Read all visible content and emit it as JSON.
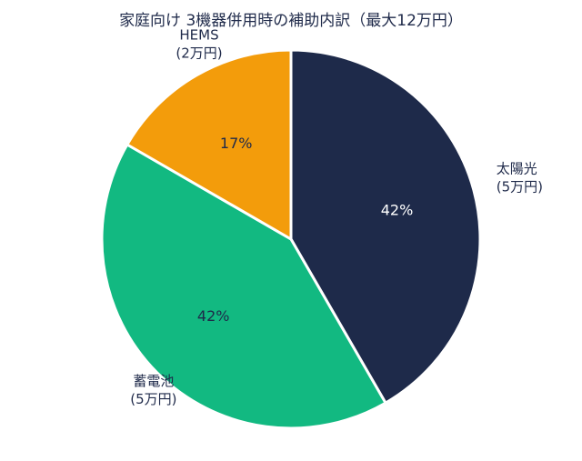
{
  "chart_data": {
    "type": "pie",
    "title": "家庭向け 3機器併用時の補助内訳（最大12万円）",
    "slices": [
      {
        "label": "太陽光",
        "sublabel": "(5万円)",
        "value": 5,
        "percent_label": "42%",
        "color": "#1e2a4a",
        "pct_color": "#ffffff"
      },
      {
        "label": "蓄電池",
        "sublabel": "(5万円)",
        "value": 5,
        "percent_label": "42%",
        "color": "#12b981",
        "pct_color": "#1f2a4a"
      },
      {
        "label": "HEMS",
        "sublabel": "(2万円)",
        "value": 2,
        "percent_label": "17%",
        "color": "#f39c0b",
        "pct_color": "#1f2a4a"
      }
    ],
    "start_angle": "12 o'clock",
    "direction": "clockwise",
    "legend": "none"
  }
}
